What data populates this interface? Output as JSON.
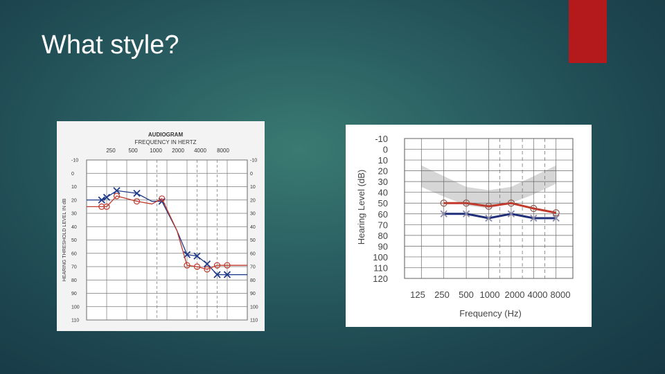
{
  "slide": {
    "title": "What style?",
    "accent_color": "#b4191b"
  },
  "chart_data": [
    {
      "type": "line",
      "title": "AUDIOGRAM",
      "subtitle": "FREQUENCY IN HERTZ",
      "xlabel": "",
      "ylabel": "HEARING THRESHOLD LEVEL IN dB",
      "x_ticks": [
        "250",
        "500",
        "1000",
        "2000",
        "4000",
        "8000"
      ],
      "y_ticks": [
        "-10",
        "0",
        "10",
        "20",
        "30",
        "40",
        "50",
        "60",
        "70",
        "80",
        "90",
        "100",
        "110"
      ],
      "ylim": [
        -10,
        110
      ],
      "y_inverted": true,
      "grid": true,
      "series": [
        {
          "marker": "x",
          "color": "#1f3a8a",
          "points": [
            [
              0.75,
              20
            ],
            [
              1,
              18
            ],
            [
              1.5,
              13
            ],
            [
              2.5,
              15
            ],
            [
              3.25,
              21
            ],
            [
              3.75,
              21
            ],
            [
              4.5,
              43
            ],
            [
              5,
              61
            ],
            [
              5.5,
              62
            ],
            [
              6,
              68
            ],
            [
              6.5,
              76
            ],
            [
              7,
              76
            ]
          ]
        },
        {
          "marker": "o",
          "color": "#c0392b",
          "points": [
            [
              0.75,
              25
            ],
            [
              1,
              25
            ],
            [
              1.5,
              17
            ],
            [
              2.5,
              21
            ],
            [
              3.25,
              23
            ],
            [
              3.75,
              19
            ],
            [
              4.5,
              43
            ],
            [
              5,
              69
            ],
            [
              5.5,
              70
            ],
            [
              6,
              72
            ],
            [
              6.5,
              69
            ],
            [
              7,
              69
            ]
          ]
        }
      ]
    },
    {
      "type": "line",
      "title": "",
      "xlabel": "Frequency (Hz)",
      "ylabel": "Hearing Level (dB)",
      "x_ticks": [
        "125",
        "250",
        "500",
        "1000",
        "2000",
        "4000",
        "8000"
      ],
      "y_ticks": [
        "-10",
        "0",
        "10",
        "20",
        "30",
        "40",
        "50",
        "60",
        "70",
        "80",
        "90",
        "100",
        "110",
        "120"
      ],
      "ylim": [
        -10,
        120
      ],
      "y_inverted": true,
      "grid": true,
      "shaded_band": {
        "color": "#c8c8c8",
        "upper": [
          [
            1,
            15
          ],
          [
            2,
            25
          ],
          [
            3,
            35
          ],
          [
            4,
            38
          ],
          [
            5,
            35
          ],
          [
            6,
            25
          ],
          [
            7,
            15
          ]
        ],
        "lower": [
          [
            1,
            35
          ],
          [
            2,
            44
          ],
          [
            3,
            52
          ],
          [
            4,
            55
          ],
          [
            5,
            50
          ],
          [
            6,
            42
          ],
          [
            7,
            32
          ]
        ]
      },
      "series": [
        {
          "marker": "x",
          "color": "#1f2f7a",
          "points": [
            [
              2,
              60
            ],
            [
              3,
              60
            ],
            [
              4,
              64
            ],
            [
              5,
              60
            ],
            [
              6,
              64
            ],
            [
              7,
              64
            ]
          ]
        },
        {
          "marker": "o",
          "color": "#c0392b",
          "points": [
            [
              2,
              50
            ],
            [
              3,
              50
            ],
            [
              4,
              53
            ],
            [
              5,
              50
            ],
            [
              6,
              55
            ],
            [
              7,
              59
            ]
          ]
        }
      ]
    }
  ]
}
